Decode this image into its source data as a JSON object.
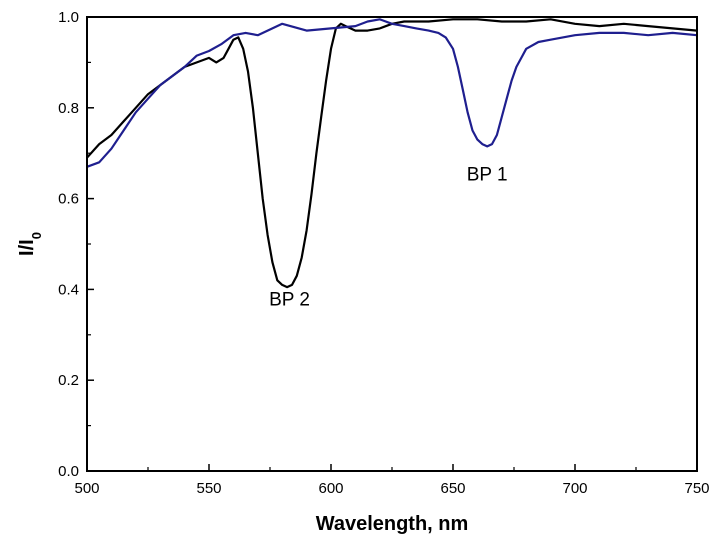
{
  "chart_data": {
    "type": "line",
    "title": "",
    "xlabel": "Wavelength, nm",
    "ylabel": "I/I",
    "ylabel_subscript": "0",
    "xlim": [
      500,
      750
    ],
    "ylim": [
      0.0,
      1.0
    ],
    "xticks": [
      500,
      550,
      600,
      650,
      700,
      750
    ],
    "xtick_labels": [
      "500",
      "550",
      "600",
      "650",
      "700",
      "750"
    ],
    "yticks": [
      0.0,
      0.2,
      0.4,
      0.6,
      0.8,
      1.0
    ],
    "ytick_labels": [
      "0.0",
      "0.2",
      "0.4",
      "0.6",
      "0.8",
      "1.0"
    ],
    "grid": false,
    "annotations": [
      {
        "text": "BP 2",
        "x": 583,
        "y": 0.365
      },
      {
        "text": "BP 1",
        "x": 664,
        "y": 0.64
      }
    ],
    "series": [
      {
        "color": "#000000",
        "x": [
          500,
          505,
          510,
          515,
          520,
          525,
          530,
          535,
          540,
          545,
          550,
          553,
          556,
          558,
          560,
          562,
          564,
          566,
          568,
          570,
          572,
          574,
          576,
          578,
          580,
          582,
          584,
          586,
          588,
          590,
          592,
          594,
          596,
          598,
          600,
          602,
          604,
          606,
          610,
          615,
          620,
          625,
          630,
          640,
          650,
          660,
          670,
          680,
          690,
          700,
          710,
          720,
          730,
          740,
          750
        ],
        "y": [
          0.69,
          0.72,
          0.74,
          0.77,
          0.8,
          0.83,
          0.85,
          0.87,
          0.89,
          0.9,
          0.91,
          0.9,
          0.91,
          0.93,
          0.95,
          0.955,
          0.93,
          0.88,
          0.8,
          0.7,
          0.6,
          0.52,
          0.46,
          0.42,
          0.41,
          0.405,
          0.41,
          0.43,
          0.47,
          0.53,
          0.61,
          0.7,
          0.78,
          0.86,
          0.93,
          0.975,
          0.985,
          0.98,
          0.97,
          0.97,
          0.975,
          0.985,
          0.99,
          0.99,
          0.995,
          0.995,
          0.99,
          0.99,
          0.995,
          0.985,
          0.98,
          0.985,
          0.98,
          0.975,
          0.97
        ]
      },
      {
        "color": "#1f1f8f",
        "x": [
          500,
          505,
          510,
          515,
          520,
          525,
          530,
          535,
          540,
          545,
          550,
          555,
          560,
          565,
          570,
          580,
          590,
          600,
          610,
          615,
          620,
          625,
          630,
          635,
          640,
          644,
          647,
          650,
          652,
          654,
          656,
          658,
          660,
          662,
          664,
          666,
          668,
          670,
          672,
          674,
          676,
          678,
          680,
          685,
          690,
          700,
          710,
          720,
          730,
          740,
          750
        ],
        "y": [
          0.67,
          0.68,
          0.71,
          0.75,
          0.79,
          0.82,
          0.85,
          0.87,
          0.89,
          0.915,
          0.925,
          0.94,
          0.96,
          0.965,
          0.96,
          0.985,
          0.97,
          0.975,
          0.98,
          0.99,
          0.995,
          0.985,
          0.98,
          0.975,
          0.97,
          0.965,
          0.955,
          0.93,
          0.89,
          0.84,
          0.79,
          0.75,
          0.73,
          0.72,
          0.715,
          0.72,
          0.74,
          0.78,
          0.82,
          0.86,
          0.89,
          0.91,
          0.93,
          0.945,
          0.95,
          0.96,
          0.965,
          0.965,
          0.96,
          0.965,
          0.96
        ]
      }
    ]
  }
}
